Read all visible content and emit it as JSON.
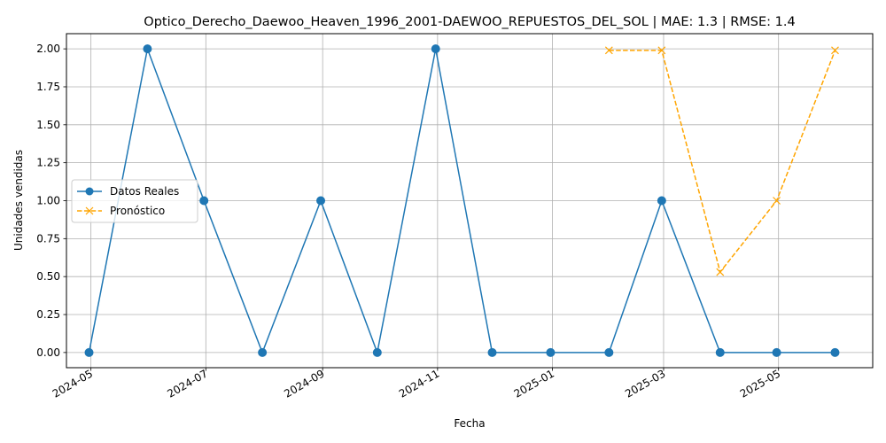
{
  "chart_data": {
    "type": "line",
    "title": "Optico_Derecho_Daewoo_Heaven_1996_2001-DAEWOO_REPUESTOS_DEL_SOL | MAE: 1.3 | RMSE: 1.4",
    "xlabel": "Fecha",
    "ylabel": "Unidades vendidas",
    "xlim": [
      "2024-04-18",
      "2025-06-20"
    ],
    "ylim": [
      -0.1,
      2.1
    ],
    "grid": true,
    "legend_position": "center-left",
    "x_ticks": [
      "2024-05",
      "2024-07",
      "2024-09",
      "2024-11",
      "2025-01",
      "2025-03",
      "2025-05"
    ],
    "x_tick_dates": [
      "2024-05-01",
      "2024-07-01",
      "2024-09-01",
      "2024-11-01",
      "2025-01-01",
      "2025-03-01",
      "2025-05-01"
    ],
    "y_ticks": [
      "0.00",
      "0.25",
      "0.50",
      "0.75",
      "1.00",
      "1.25",
      "1.50",
      "1.75",
      "2.00"
    ],
    "y_tick_values": [
      0,
      0.25,
      0.5,
      0.75,
      1.0,
      1.25,
      1.5,
      1.75,
      2.0
    ],
    "series": [
      {
        "name": "Datos Reales",
        "color": "#1f77b4",
        "linestyle": "solid",
        "marker": "circle",
        "x": [
          "2024-04-30",
          "2024-05-31",
          "2024-06-30",
          "2024-07-31",
          "2024-08-31",
          "2024-09-30",
          "2024-10-31",
          "2024-11-30",
          "2024-12-31",
          "2025-01-31",
          "2025-02-28",
          "2025-03-31",
          "2025-04-30",
          "2025-05-31"
        ],
        "values": [
          0,
          2,
          1,
          0,
          1,
          0,
          2,
          0,
          0,
          0,
          1,
          0,
          0,
          0
        ]
      },
      {
        "name": "Pronóstico",
        "color": "#ffa500",
        "linestyle": "dashed",
        "marker": "x",
        "x": [
          "2025-01-31",
          "2025-02-28",
          "2025-03-31",
          "2025-04-30",
          "2025-05-31"
        ],
        "values": [
          1.99,
          1.99,
          0.53,
          1.0,
          1.99
        ]
      }
    ]
  }
}
